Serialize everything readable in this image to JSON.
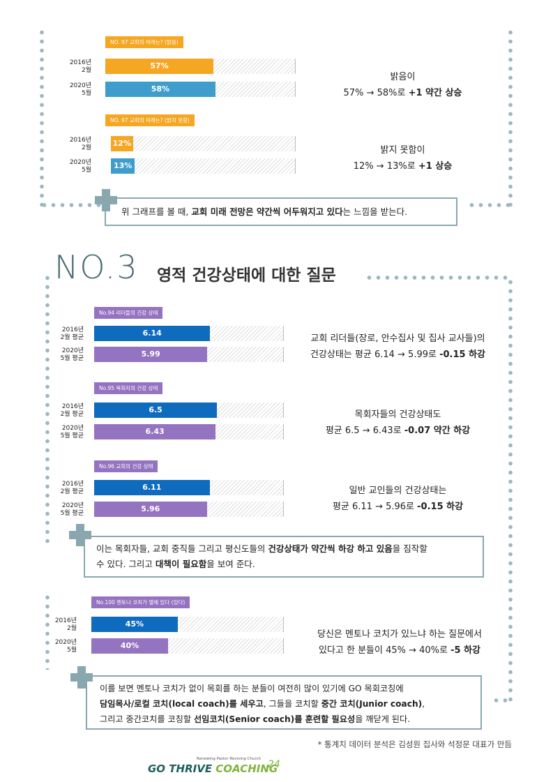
{
  "colors": {
    "orange": "#f5a623",
    "blue_light": "#3e9dcc",
    "blue_dark": "#0f6bbd",
    "purple": "#9473c0",
    "frame": "#9fb6bf"
  },
  "section1": {
    "tag1": "NO. 97 교회의 미래는? (밝음)",
    "tag2": "NO. 97 교회의 미래는? (밝지 못함)",
    "bright": {
      "rows": [
        {
          "label1": "2016년",
          "label2": "2월",
          "value_text": "57%",
          "value": 57
        },
        {
          "label1": "2020년",
          "label2": "5월",
          "value_text": "58%",
          "value": 58
        }
      ],
      "desc_line1": "밝음이",
      "desc_line2": "57% → 58%로 ",
      "desc_bold": "+1 약간 상승"
    },
    "notbright": {
      "rows": [
        {
          "label1": "2016년",
          "label2": "2월",
          "value_text": "12%",
          "value": 12
        },
        {
          "label1": "2020년",
          "label2": "5월",
          "value_text": "13%",
          "value": 13
        }
      ],
      "desc_line1": "밝지 못함이",
      "desc_line2": "12% → 13%로 ",
      "desc_bold": "+1 상승"
    },
    "callout": {
      "t1": "위 그래프를 볼 때, ",
      "b1": "교회 미래 전망은 약간씩 어두워지고 있다",
      "t2": "는 느낌을 받는다."
    }
  },
  "section2": {
    "number": "NO.3",
    "title": "영적 건강상태에 대한 질문",
    "charts": [
      {
        "tag": "No.94 리더들의 건강 상태",
        "rows": [
          {
            "label1": "2016년",
            "label2": "2월 평균",
            "value_text": "6.14",
            "value": 6.14
          },
          {
            "label1": "2020년",
            "label2": "5월 평균",
            "value_text": "5.99",
            "value": 5.99
          }
        ],
        "desc_line1": "교회 리더들(장로, 안수집사 및 집사 교사들)의",
        "desc_line2": "건강상태는 평균 6.14 → 5.99로 ",
        "desc_bold": "-0.15 하강"
      },
      {
        "tag": "No.95 목회자의 건강 상태",
        "rows": [
          {
            "label1": "2016년",
            "label2": "2월 평균",
            "value_text": "6.5",
            "value": 6.5
          },
          {
            "label1": "2020년",
            "label2": "5월 평균",
            "value_text": "6.43",
            "value": 6.43
          }
        ],
        "desc_line1": "목회자들의 건강상태도",
        "desc_line2": "평균 6.5 → 6.43로 ",
        "desc_bold": "-0.07 약간 하강"
      },
      {
        "tag": "No.96 교회의 건강 상태",
        "rows": [
          {
            "label1": "2016년",
            "label2": "2월 평균",
            "value_text": "6.11",
            "value": 6.11
          },
          {
            "label1": "2020년",
            "label2": "5월 평균",
            "value_text": "5.96",
            "value": 5.96
          }
        ],
        "desc_line1": "일반 교인들의 건강상태는",
        "desc_line2": "평균 6.11 → 5.96로 ",
        "desc_bold": "-0.15 하강"
      }
    ],
    "callout1": {
      "t1": "이는 목회자들, 교회 중직들 그리고 평신도들의 ",
      "b1": "건강상태가 약간씩 하강 하고 있음",
      "t2": "을 짐작할",
      "t3": "수 있다. 그리고 ",
      "b2": "대책이 필요함",
      "t4": "을 보여 준다."
    },
    "mentor": {
      "tag": "No.100 멘토나 코치가 옆에 있다 (있다)",
      "rows": [
        {
          "label1": "2016년",
          "label2": "2월",
          "value_text": "45%",
          "value": 45
        },
        {
          "label1": "2020년",
          "label2": "5월",
          "value_text": "40%",
          "value": 40
        }
      ],
      "desc_line1": "당신은 멘토나 코치가 있느냐 하는 질문에서",
      "desc_line2": "있다고 한 분들이 45% → 40%로 ",
      "desc_bold": "-5 하강"
    },
    "callout2": {
      "l1": "이를 보면 멘토나 코치가 없이 목회를 하는 분들이 여전히 많이 있기에 GO 목회코칭에",
      "l2b1": "담임목사/로컬 코치(local coach)를 세우고",
      "l2t1": ", 그들을 코치할 ",
      "l2b2": "중간 코치(Junior coach)",
      "l2t2": ",",
      "l3t1": "그리고 중간코치를 코칭할 ",
      "l3b1": "선임코치(Senior coach)를 훈련할 필요성",
      "l3t2": "을 깨닫게 된다."
    }
  },
  "footer": {
    "note": "* 통계치 데이터 분석은 김성원 집사와 석정문 대표가 만듬",
    "logo_small": "Renewing Pastor Reviving Church",
    "logo_go": "GO ",
    "logo_thrive": "THRIVE",
    "logo_coaching": " COACHING",
    "page": "24"
  }
}
